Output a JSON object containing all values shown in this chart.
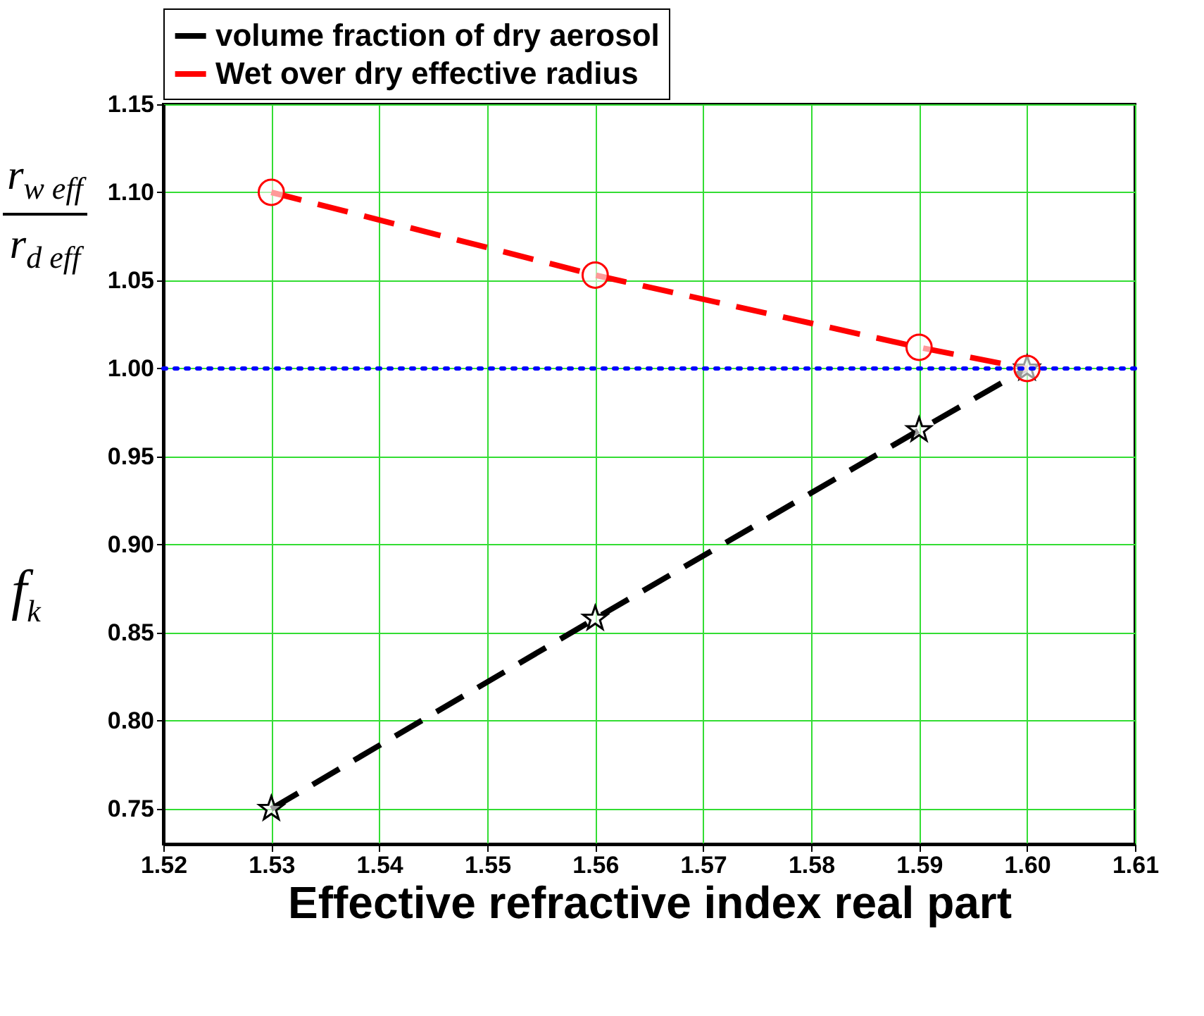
{
  "chart_data": {
    "type": "line",
    "xlabel": "Effective refractive index real part",
    "ylabel": "f$_{k}$",
    "annotations": [
      "r$_{w eff}$",
      "r$_{d eff}$"
    ],
    "x": [
      1.53,
      1.56,
      1.59,
      1.6
    ],
    "series": [
      {
        "name": "volume fraction of dry aerosol",
        "color": "#000000",
        "values": [
          0.75,
          0.858,
          0.965,
          1.0
        ],
        "marker": "star",
        "line_style": "dashed"
      },
      {
        "name": "Wet over dry effective radius",
        "color": "#ff0000",
        "values": [
          1.1,
          1.053,
          1.012,
          1.0
        ],
        "marker": "circle",
        "line_style": "dashed"
      }
    ],
    "xlim": [
      1.52,
      1.61
    ],
    "xticks": [
      1.52,
      1.53,
      1.54,
      1.55,
      1.56,
      1.57,
      1.58,
      1.59,
      {
        "value": 1.6,
        "label": "1.60"
      },
      1.61
    ],
    "ylim": [
      0.73,
      1.15
    ],
    "yticks": [
      0.75,
      {
        "value": 0.8,
        "label": "0.80"
      },
      0.85,
      {
        "value": 0.9,
        "label": "0.90"
      },
      0.95,
      {
        "value": 1.0,
        "label": "1.00"
      },
      1.05,
      {
        "value": 1.1,
        "label": "1.10"
      },
      1.15
    ],
    "ref_lines": [
      {
        "axis": "y",
        "value": 1.0,
        "color": "#0000ff",
        "line_style": "dotted"
      }
    ],
    "grid": true,
    "legend": "top"
  }
}
